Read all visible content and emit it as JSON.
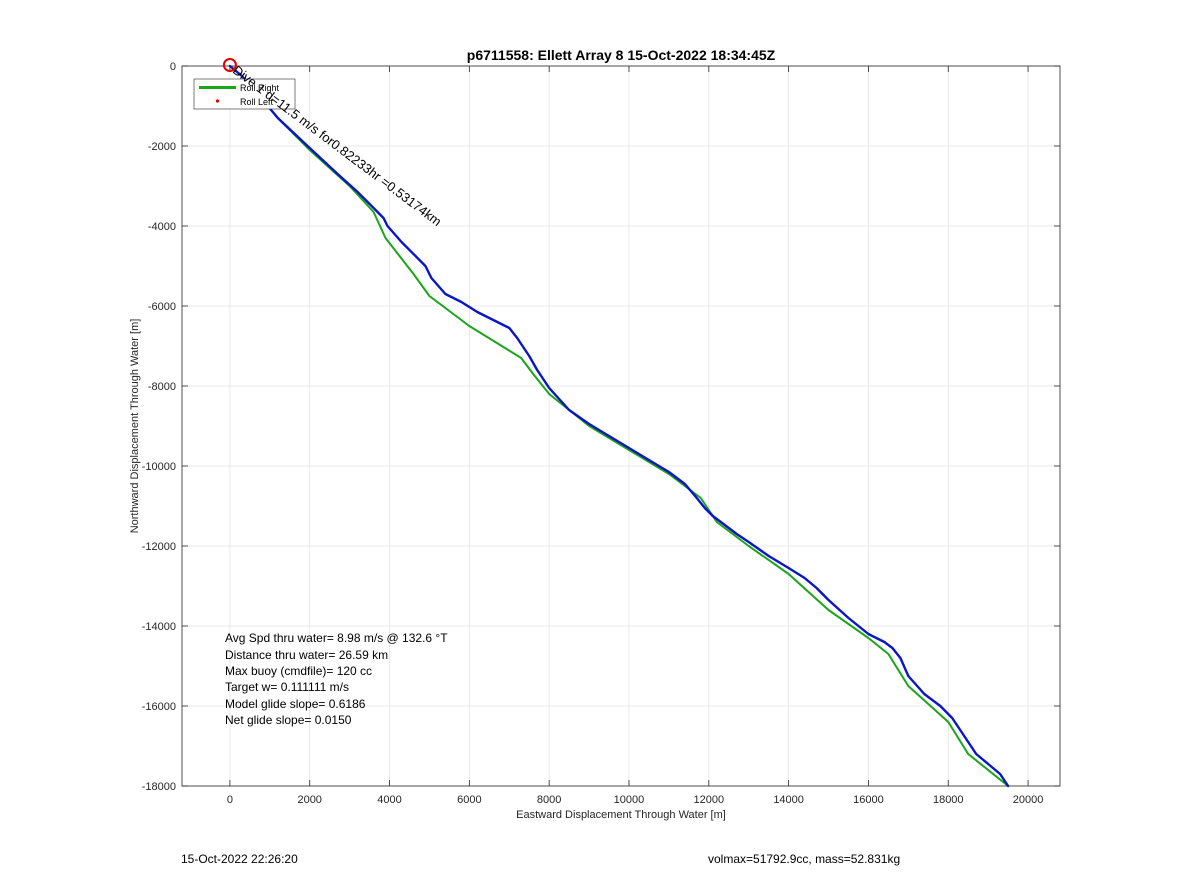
{
  "chart_data": {
    "type": "line",
    "title": "p6711558: Ellett Array 8 15-Oct-2022 18:34:45Z",
    "xlabel": "Eastward Displacement Through Water [m]",
    "ylabel": "Northward Displacement Through Water [m]",
    "xlim": [
      -1200,
      20800
    ],
    "ylim": [
      -18000,
      0
    ],
    "xticks": [
      0,
      2000,
      4000,
      6000,
      8000,
      10000,
      12000,
      14000,
      16000,
      18000,
      20000
    ],
    "yticks": [
      0,
      -2000,
      -4000,
      -6000,
      -8000,
      -10000,
      -12000,
      -14000,
      -16000,
      -18000
    ],
    "grid": true,
    "legend": {
      "placement": "top-left",
      "entries": [
        "Roll Right",
        "Roll Left"
      ]
    },
    "start_marker": {
      "x": 0,
      "y": 0
    },
    "series": [
      {
        "name": "Roll Right",
        "color": "#1aa51a",
        "x": [
          0,
          300,
          700,
          1200,
          2000,
          3000,
          3600,
          3900,
          4600,
          5000,
          6000,
          7300,
          7600,
          8000,
          9000,
          10000,
          11000,
          11800,
          12200,
          13000,
          14000,
          15000,
          16000,
          16500,
          17000,
          18000,
          18500,
          19500
        ],
        "y": [
          0,
          -250,
          -700,
          -1300,
          -2100,
          -3000,
          -3650,
          -4300,
          -5200,
          -5750,
          -6500,
          -7300,
          -7700,
          -8200,
          -9000,
          -9600,
          -10200,
          -10800,
          -11400,
          -12000,
          -12700,
          -13600,
          -14300,
          -14700,
          -15500,
          -16400,
          -17200,
          -18000
        ]
      },
      {
        "name": "",
        "color": "#0a14c8",
        "x": [
          0,
          300,
          700,
          1200,
          2000,
          2700,
          3200,
          3600,
          3850,
          3950,
          4300,
          4700,
          4900,
          5050,
          5400,
          5800,
          6200,
          6600,
          7000,
          7200,
          7500,
          7700,
          8000,
          8500,
          9000,
          9500,
          10000,
          10500,
          11000,
          11400,
          11700,
          11900,
          12100,
          12300,
          12700,
          13000,
          13500,
          14000,
          14400,
          14700,
          15000,
          15500,
          16000,
          16400,
          16600,
          16800,
          17000,
          17400,
          17800,
          18100,
          18300,
          18500,
          18700,
          19000,
          19300,
          19500
        ],
        "y": [
          0,
          -250,
          -700,
          -1300,
          -2050,
          -2700,
          -3150,
          -3550,
          -3800,
          -4000,
          -4400,
          -4800,
          -5000,
          -5300,
          -5700,
          -5900,
          -6150,
          -6350,
          -6550,
          -6800,
          -7250,
          -7600,
          -8050,
          -8600,
          -8950,
          -9250,
          -9550,
          -9850,
          -10150,
          -10450,
          -10800,
          -11050,
          -11250,
          -11400,
          -11700,
          -11900,
          -12250,
          -12550,
          -12800,
          -13050,
          -13350,
          -13800,
          -14200,
          -14400,
          -14550,
          -14800,
          -15250,
          -15700,
          -16000,
          -16300,
          -16600,
          -16900,
          -17200,
          -17450,
          -17700,
          -18000
        ]
      }
    ],
    "annotations": {
      "track_label": "Dive 1 d=11.5 m/s for0.82233hr =0.53174km",
      "stats": [
        "Avg Spd thru water=  8.98 m/s @ 132.6 °T",
        "Distance thru water= 26.59 km",
        "Max buoy (cmdfile)= 120 cc",
        "Target w= 0.111111 m/s",
        "Model glide slope= 0.6186",
        "Net glide slope= 0.0150"
      ]
    }
  },
  "footer": {
    "timestamp": "15-Oct-2022 22:26:20",
    "volume_mass": "volmax=51792.9cc, mass=52.831kg"
  }
}
